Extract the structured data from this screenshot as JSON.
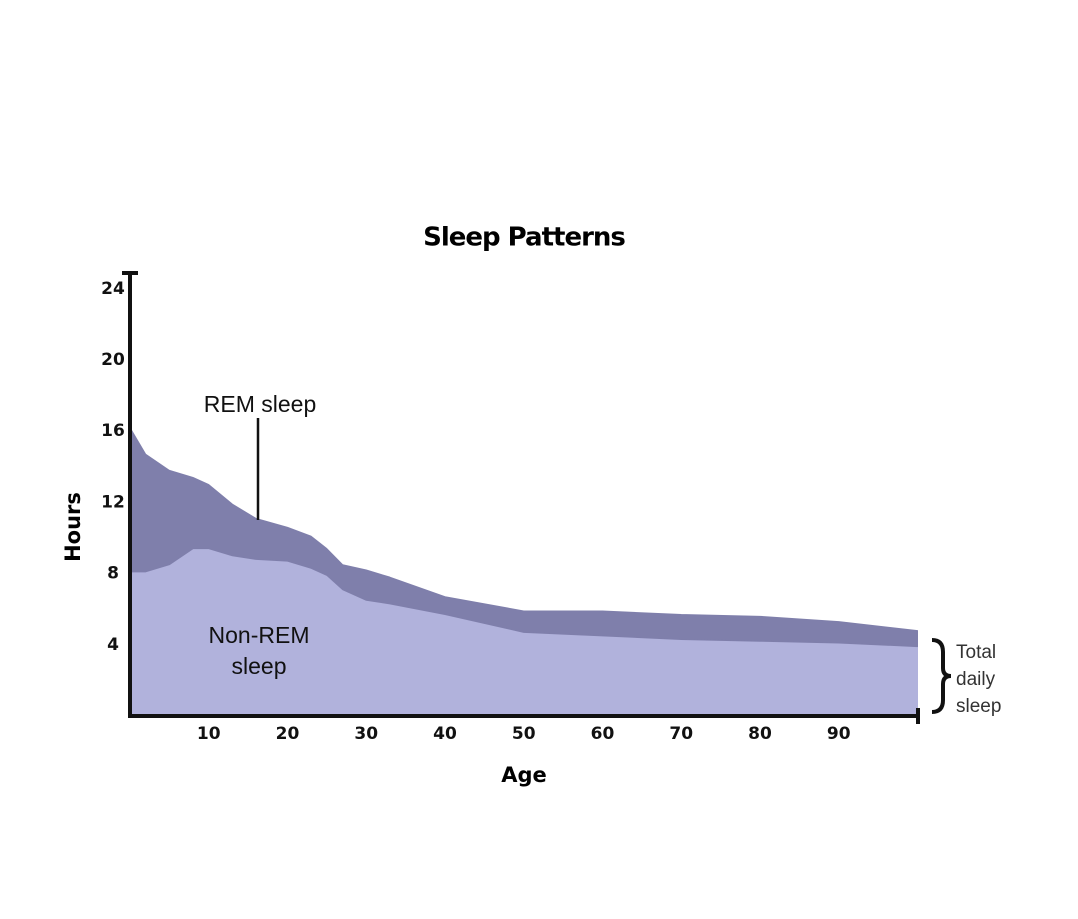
{
  "chart_data": {
    "type": "stacked_area",
    "title": "Sleep Patterns",
    "x_label": "Age",
    "y_label": "Hours",
    "x": [
      0,
      2,
      5,
      8,
      10,
      13,
      16,
      20,
      23,
      25,
      27,
      30,
      33,
      40,
      50,
      60,
      70,
      80,
      90,
      100
    ],
    "series": [
      {
        "name": "Non-REM sleep",
        "color": "#b1b2dc",
        "values": [
          8.1,
          8.1,
          8.5,
          9.4,
          9.4,
          9.0,
          8.8,
          8.7,
          8.3,
          7.9,
          7.1,
          6.5,
          6.3,
          5.7,
          4.7,
          4.5,
          4.3,
          4.2,
          4.1,
          3.9
        ]
      },
      {
        "name": "REM sleep",
        "color": "#7f7fab",
        "values": [
          8.1,
          6.6,
          5.3,
          4.0,
          3.6,
          2.9,
          2.3,
          1.9,
          1.8,
          1.5,
          1.4,
          1.7,
          1.5,
          1.0,
          1.2,
          1.4,
          1.4,
          1.4,
          1.2,
          0.9
        ]
      }
    ],
    "annotation": "Total daily sleep",
    "xlim": [
      0,
      100
    ],
    "xticks": [
      10,
      20,
      30,
      40,
      50,
      60,
      70,
      80,
      90
    ],
    "ylim": [
      0,
      25
    ],
    "yticks": [
      4,
      8,
      12,
      16,
      20,
      24
    ],
    "grid": false
  }
}
